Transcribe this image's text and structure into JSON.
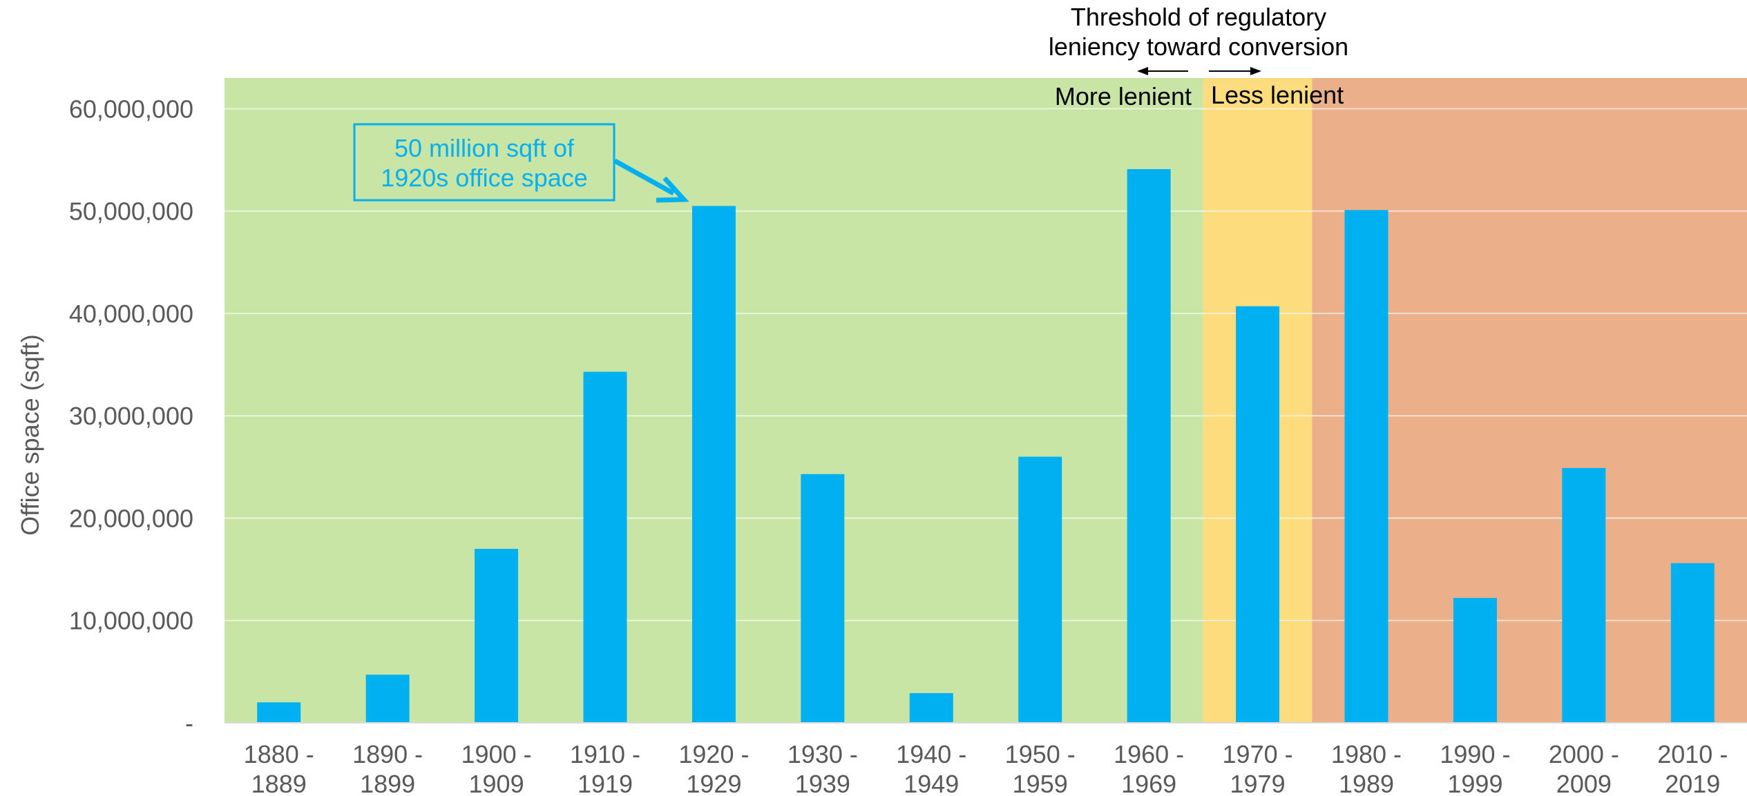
{
  "chart_data": {
    "type": "bar",
    "title": "",
    "xlabel": "",
    "ylabel": "Office space (sqft)",
    "ylim": [
      0,
      63000000
    ],
    "yticks": [
      0,
      10000000,
      20000000,
      30000000,
      40000000,
      50000000,
      60000000
    ],
    "ytick_labels": [
      "-",
      "10,000,000",
      "20,000,000",
      "30,000,000",
      "40,000,000",
      "50,000,000",
      "60,000,000"
    ],
    "grid": true,
    "categories": [
      [
        "1880 -",
        "1889"
      ],
      [
        "1890 -",
        "1899"
      ],
      [
        "1900 -",
        "1909"
      ],
      [
        "1910 -",
        "1919"
      ],
      [
        "1920 -",
        "1929"
      ],
      [
        "1930 -",
        "1939"
      ],
      [
        "1940 -",
        "1949"
      ],
      [
        "1950 -",
        "1959"
      ],
      [
        "1960 -",
        "1969"
      ],
      [
        "1970 -",
        "1979"
      ],
      [
        "1980 -",
        "1989"
      ],
      [
        "1990 -",
        "1999"
      ],
      [
        "2000 -",
        "2009"
      ],
      [
        "2010 -",
        "2019"
      ]
    ],
    "values": [
      2000000,
      4700000,
      17000000,
      34300000,
      50500000,
      24300000,
      2900000,
      26000000,
      54100000,
      40700000,
      50100000,
      12200000,
      24900000,
      15600000
    ],
    "bar_color": "#00b0f0",
    "regions": [
      {
        "name": "more-lenient",
        "start_category": 0,
        "end_category": 8.5,
        "color": "#c9e5a6"
      },
      {
        "name": "threshold",
        "start_category": 8.5,
        "end_category": 9.5,
        "color": "#fddc7e"
      },
      {
        "name": "less-lenient",
        "start_category": 9.5,
        "end_category": 13.5,
        "color": "#ebb08a"
      }
    ],
    "annotations": {
      "threshold_title": [
        "Threshold of regulatory",
        "leniency toward conversion"
      ],
      "more_lenient": "More lenient",
      "less_lenient": "Less lenient",
      "callout": [
        "50 million sqft of",
        "1920s office space"
      ],
      "callout_color": "#00b0f0"
    }
  }
}
